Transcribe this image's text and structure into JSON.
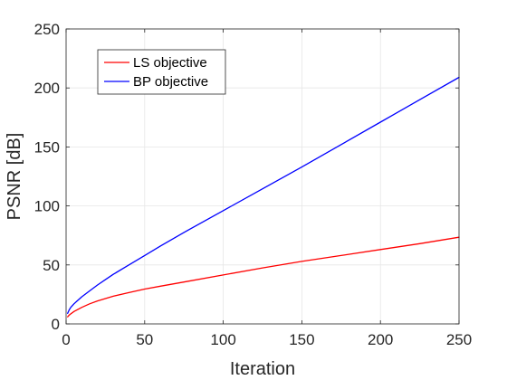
{
  "chart_data": {
    "type": "line",
    "xlabel": "Iteration",
    "ylabel": "PSNR [dB]",
    "xlim": [
      0,
      250
    ],
    "ylim": [
      0,
      250
    ],
    "xticks": [
      0,
      50,
      100,
      150,
      200,
      250
    ],
    "yticks": [
      0,
      50,
      100,
      150,
      200,
      250
    ],
    "grid": true,
    "legend_position": "top-left",
    "series": [
      {
        "name": "LS objective",
        "color": "#ff0000",
        "x": [
          1,
          2,
          3,
          5,
          7,
          10,
          15,
          20,
          25,
          30,
          40,
          50,
          60,
          75,
          100,
          125,
          150,
          175,
          200,
          225,
          250
        ],
        "y": [
          6,
          7.5,
          8.5,
          10.5,
          12,
          14,
          17,
          19.5,
          21.5,
          23.5,
          26.5,
          29.5,
          32,
          35.5,
          41.5,
          47.5,
          53,
          58,
          63,
          68,
          73.5
        ]
      },
      {
        "name": "BP objective",
        "color": "#0000ff",
        "x": [
          1,
          2,
          3,
          5,
          7,
          10,
          15,
          20,
          25,
          30,
          40,
          50,
          60,
          75,
          100,
          125,
          150,
          175,
          200,
          225,
          250
        ],
        "y": [
          9,
          12,
          14,
          17,
          19.5,
          23,
          28,
          33,
          37.5,
          42,
          50,
          58,
          66,
          77.5,
          96,
          114.5,
          133,
          152,
          171,
          190,
          209
        ]
      }
    ]
  }
}
